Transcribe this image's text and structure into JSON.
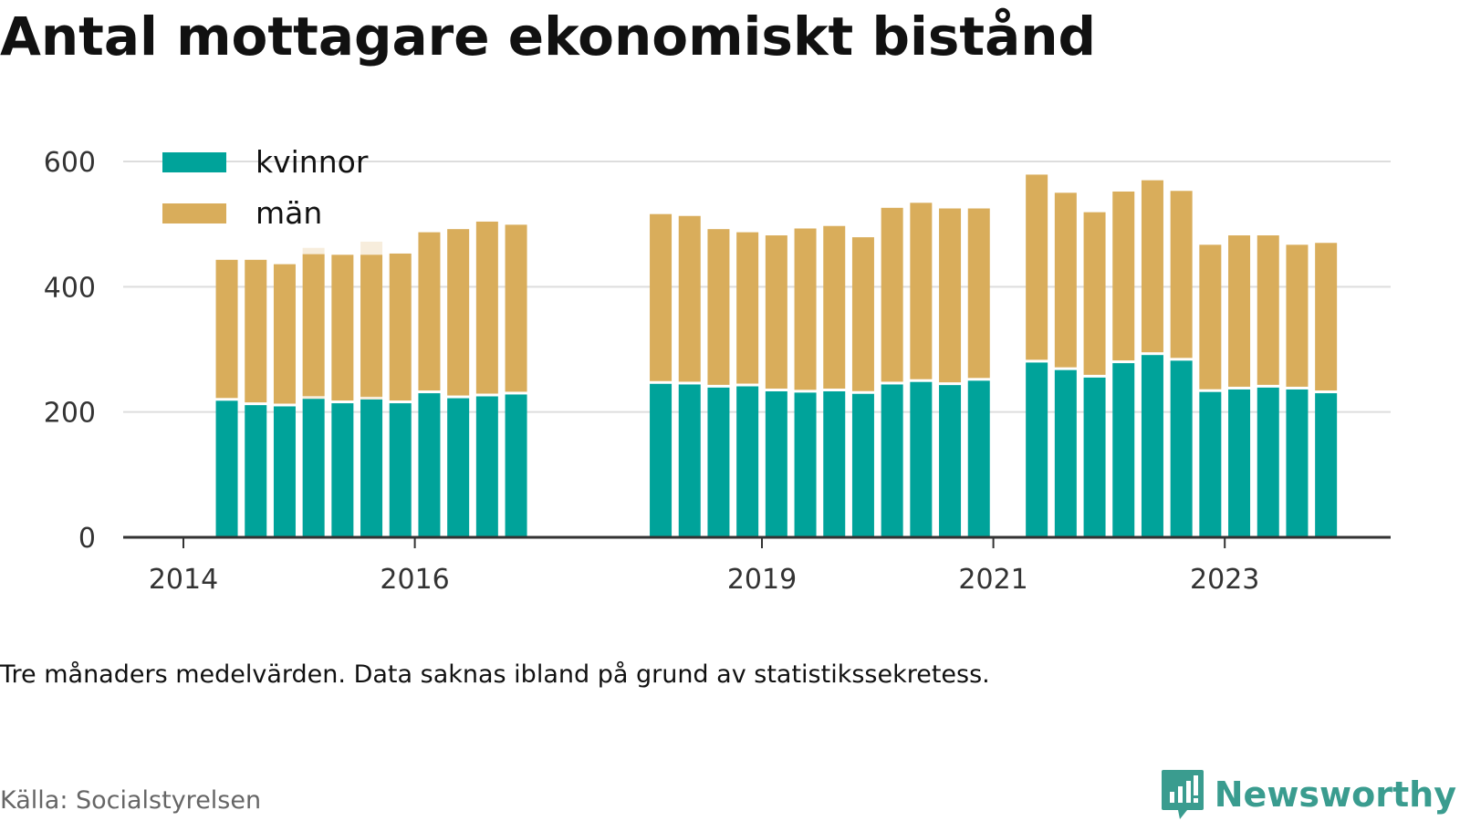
{
  "title": "Antal mottagare ekonomiskt bistånd",
  "note": "Tre månaders medelvärden. Data saknas ibland på grund av statistikssekretess.",
  "source": "Källa: Socialstyrelsen",
  "brand": {
    "name": "Newsworthy",
    "icon": "newsworthy-logo-icon"
  },
  "colors": {
    "kvinnor": "#00a39a",
    "man": "#d9ad5b",
    "grid": "#dddddd",
    "axis": "#333333",
    "ghost": "#f7eddc"
  },
  "chart_data": {
    "type": "bar",
    "stacked": true,
    "title": "Antal mottagare ekonomiskt bistånd",
    "xlabel": "",
    "ylabel": "",
    "ylim": [
      0,
      600
    ],
    "yticks": [
      0,
      200,
      400,
      600
    ],
    "xticks": [
      2014,
      2016,
      2019,
      2021,
      2023
    ],
    "grid": true,
    "legend_position": "top-left",
    "series": [
      {
        "name": "kvinnor",
        "values": [
          218,
          211,
          209,
          221,
          214,
          220,
          214,
          230,
          222,
          225,
          228,
          245,
          244,
          239,
          241,
          233,
          231,
          233,
          229,
          244,
          248,
          243,
          250,
          279,
          267,
          255,
          278,
          291,
          282,
          232,
          236,
          239,
          236,
          230
        ]
      },
      {
        "name": "män",
        "values": [
          225,
          232,
          227,
          231,
          237,
          231,
          239,
          257,
          270,
          279,
          271,
          271,
          269,
          253,
          246,
          249,
          262,
          264,
          250,
          282,
          286,
          282,
          275,
          300,
          283,
          264,
          274,
          279,
          271,
          235,
          246,
          243,
          231,
          240
        ]
      }
    ],
    "x": [
      2014.375,
      2014.625,
      2014.875,
      2015.125,
      2015.375,
      2015.625,
      2015.875,
      2016.125,
      2016.375,
      2016.625,
      2016.875,
      2018.125,
      2018.375,
      2018.625,
      2018.875,
      2019.125,
      2019.375,
      2019.625,
      2019.875,
      2020.125,
      2020.375,
      2020.625,
      2020.875,
      2021.375,
      2021.625,
      2021.875,
      2022.125,
      2022.375,
      2022.625,
      2022.875,
      2023.125,
      2023.375,
      2023.625,
      2023.875
    ],
    "ghost_bars": [
      {
        "x": 2015.125,
        "value": 462
      },
      {
        "x": 2015.625,
        "value": 472
      }
    ]
  }
}
